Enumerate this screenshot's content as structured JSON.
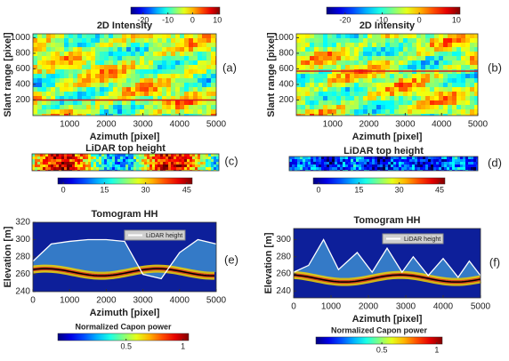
{
  "chart_data": [
    {
      "type": "heatmap",
      "panel_label": "(a)",
      "title": "2D Intensity",
      "x_label": "Azimuth [pixel]",
      "y_label": "Slant range [pixel]",
      "xlim": [
        0,
        5000
      ],
      "xticks": [
        1000,
        2000,
        3000,
        4000,
        5000
      ],
      "ylim": [
        0,
        1050
      ],
      "yticks": [
        200,
        400,
        600,
        800,
        1000
      ],
      "line_value": 200,
      "line_color": "#d7191c",
      "colorbar": {
        "lim": [
          -25,
          11
        ],
        "ticks": [
          -20,
          -10,
          0,
          10
        ]
      }
    },
    {
      "type": "heatmap",
      "panel_label": "(b)",
      "title": "2D Intensity",
      "x_label": "Azimuth [pixel]",
      "y_label": "Slant range [pixel]",
      "xlim": [
        0,
        5000
      ],
      "xticks": [
        1000,
        2000,
        3000,
        4000,
        5000
      ],
      "ylim": [
        0,
        1050
      ],
      "yticks": [
        200,
        400,
        600,
        800,
        1000
      ],
      "line_value": 570,
      "line_color": "#d7191c",
      "colorbar": {
        "lim": [
          -25,
          11
        ],
        "ticks": [
          -20,
          -10,
          0,
          10
        ]
      }
    },
    {
      "type": "strip",
      "panel_label": "(c)",
      "title": "LiDAR top height",
      "colorbar": {
        "lim": [
          -2,
          47
        ],
        "ticks": [
          0,
          15,
          30,
          45
        ]
      }
    },
    {
      "type": "strip",
      "panel_label": "(d)",
      "title": "LiDAR top height",
      "colorbar": {
        "lim": [
          -2,
          47
        ],
        "ticks": [
          0,
          15,
          30,
          45
        ]
      }
    },
    {
      "type": "tomogram",
      "panel_label": "(e)",
      "title": "Tomogram HH",
      "x_label": "Azimuth [pixel]",
      "y_label": "Elevation [m]",
      "xlim": [
        0,
        5000
      ],
      "xticks": [
        0,
        1000,
        2000,
        3000,
        4000,
        5000
      ],
      "ylim": [
        240,
        320
      ],
      "yticks": [
        240,
        260,
        280,
        300,
        320
      ],
      "series": [
        {
          "name": "LiDAR height",
          "color": "#ffffff",
          "x": [
            0,
            500,
            1000,
            1500,
            2000,
            2500,
            3000,
            3500,
            4000,
            4500,
            5000
          ],
          "values": [
            275,
            295,
            298,
            300,
            300,
            298,
            260,
            255,
            285,
            300,
            295
          ]
        }
      ],
      "colorbar": {
        "title": "Normalized Capon power",
        "lim": [
          -0.1,
          1.05
        ],
        "ticks": [
          0.5,
          1
        ]
      }
    },
    {
      "type": "tomogram",
      "panel_label": "(f)",
      "title": "Tomogram HH",
      "x_label": "Azimuth [pixel]",
      "y_label": "Elevation [m]",
      "xlim": [
        0,
        5000
      ],
      "xticks": [
        0,
        1000,
        2000,
        3000,
        4000,
        5000
      ],
      "ylim": [
        232,
        313
      ],
      "yticks": [
        240,
        260,
        280,
        300
      ],
      "series": [
        {
          "name": "LiDAR height",
          "color": "#ffffff",
          "x": [
            0,
            400,
            800,
            1200,
            1700,
            2100,
            2500,
            2900,
            3200,
            3600,
            4000,
            4400,
            4700,
            5000
          ],
          "values": [
            262,
            270,
            300,
            265,
            285,
            262,
            290,
            262,
            280,
            258,
            278,
            256,
            275,
            258
          ]
        }
      ],
      "colorbar": {
        "title": "Normalized Capon power",
        "lim": [
          -0.1,
          1.05
        ],
        "ticks": [
          0.5,
          1
        ]
      }
    }
  ]
}
